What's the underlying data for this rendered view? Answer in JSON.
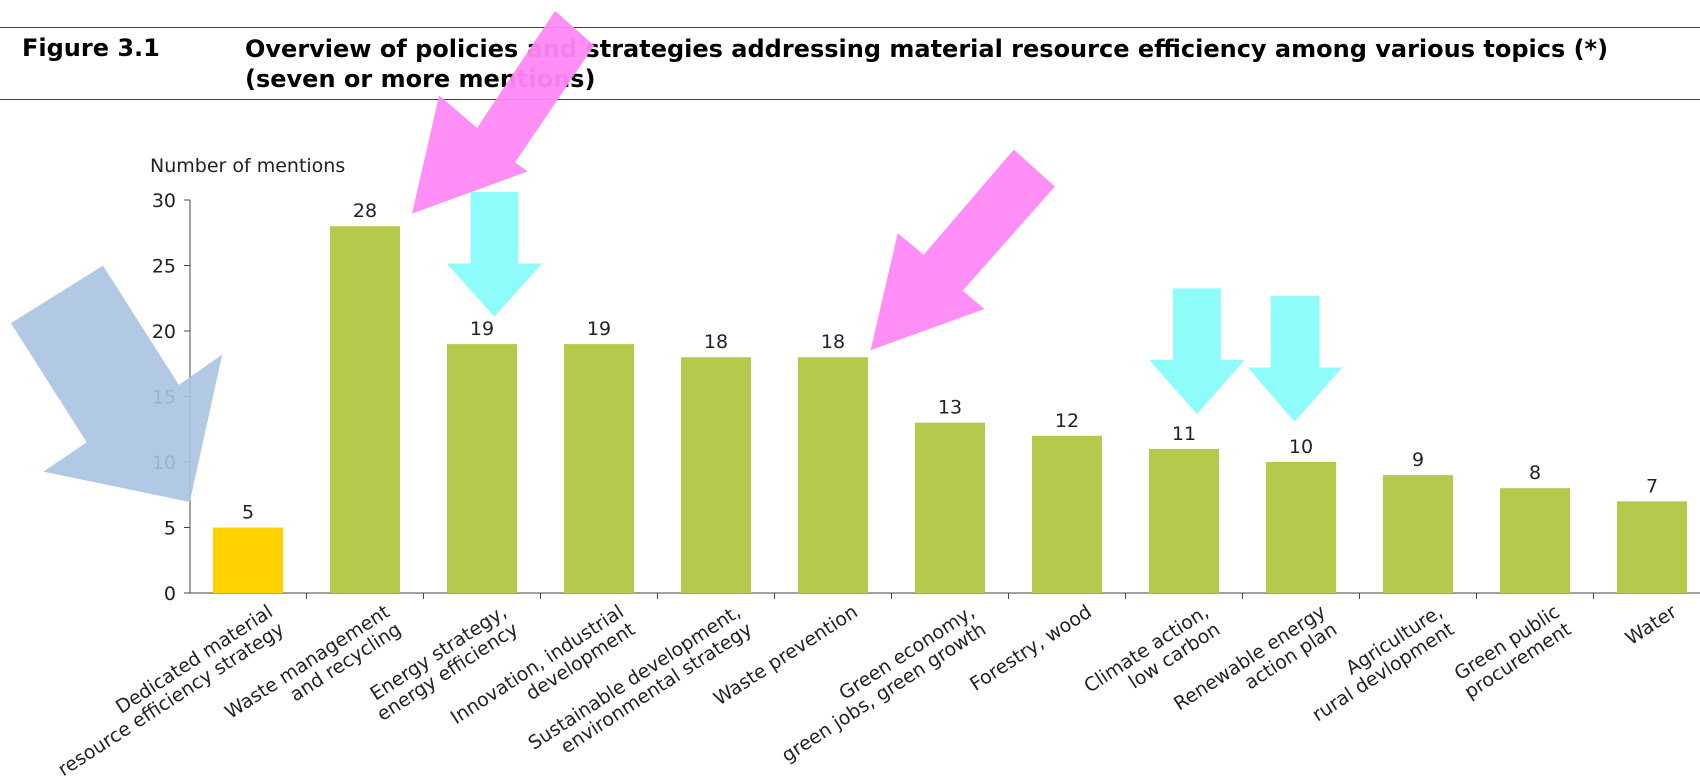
{
  "header": {
    "figure": "Figure 3.1",
    "title": "Overview of policies and strategies addressing material resource efficiency among various topics (*) (seven or more mentions)"
  },
  "chart_data": {
    "type": "bar",
    "ylabel": "Number of mentions",
    "categories": [
      "Dedicated material\nresource efficiency strategy",
      "Waste management\nand recycling",
      "Energy strategy,\nenergy efficiency",
      "Innovation, industrial\ndevelopment",
      "Sustainable development,\nenvironmental strategy",
      "Waste prevention",
      "Green economy,\ngreen jobs, green growth",
      "Forestry, wood",
      "Climate action,\nlow carbon",
      "Renewable energy\naction plan",
      "Agriculture,\nrural devlopment",
      "Green public\nprocurement",
      "Water"
    ],
    "values": [
      5,
      28,
      19,
      19,
      18,
      18,
      13,
      12,
      11,
      10,
      9,
      8,
      7
    ],
    "colors": [
      "#ffd200",
      "#b5c94c",
      "#b5c94c",
      "#b5c94c",
      "#b5c94c",
      "#b5c94c",
      "#b5c94c",
      "#b5c94c",
      "#b5c94c",
      "#b5c94c",
      "#b5c94c",
      "#b5c94c",
      "#b5c94c"
    ],
    "ylim": [
      0,
      30
    ],
    "yticks": [
      0,
      5,
      10,
      15,
      20,
      25,
      30
    ],
    "grid": false
  }
}
